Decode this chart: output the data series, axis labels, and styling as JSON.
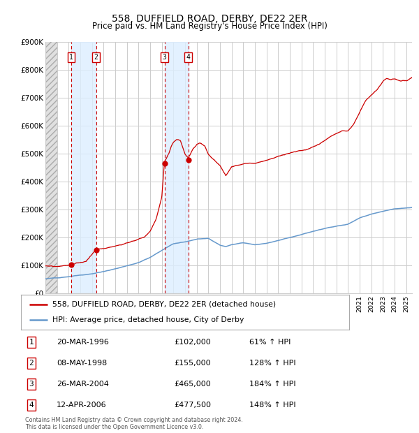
{
  "title": "558, DUFFIELD ROAD, DERBY, DE22 2ER",
  "subtitle": "Price paid vs. HM Land Registry's House Price Index (HPI)",
  "footer_line1": "Contains HM Land Registry data © Crown copyright and database right 2024.",
  "footer_line2": "This data is licensed under the Open Government Licence v3.0.",
  "legend_label_red": "558, DUFFIELD ROAD, DERBY, DE22 2ER (detached house)",
  "legend_label_blue": "HPI: Average price, detached house, City of Derby",
  "table_rows": [
    {
      "num": "1",
      "date": "20-MAR-1996",
      "price": "£102,000",
      "hpi": "61% ↑ HPI"
    },
    {
      "num": "2",
      "date": "08-MAY-1998",
      "price": "£155,000",
      "hpi": "128% ↑ HPI"
    },
    {
      "num": "3",
      "date": "26-MAR-2004",
      "price": "£465,000",
      "hpi": "184% ↑ HPI"
    },
    {
      "num": "4",
      "date": "12-APR-2006",
      "price": "£477,500",
      "hpi": "148% ↑ HPI"
    }
  ],
  "sale_dates_decimal": [
    1996.22,
    1998.35,
    2004.23,
    2006.28
  ],
  "sale_prices": [
    102000,
    155000,
    465000,
    477500
  ],
  "red_color": "#cc0000",
  "blue_color": "#6699cc",
  "shade_color": "#ddeeff",
  "grid_color": "#cccccc",
  "ylim": [
    0,
    900000
  ],
  "xlim_start": 1994.0,
  "xlim_end": 2025.5,
  "background_color": "#ffffff",
  "hpi_anchors_x": [
    1994.0,
    1995.0,
    1996.0,
    1997.0,
    1998.0,
    1999.0,
    2000.0,
    2001.0,
    2002.0,
    2003.0,
    2004.0,
    2005.0,
    2006.0,
    2007.0,
    2008.0,
    2009.0,
    2009.5,
    2010.0,
    2011.0,
    2012.0,
    2013.0,
    2014.0,
    2015.0,
    2016.0,
    2017.0,
    2018.0,
    2019.0,
    2020.0,
    2021.0,
    2022.0,
    2023.0,
    2024.0,
    2025.0,
    2025.5
  ],
  "hpi_anchors_v": [
    52000,
    55000,
    60000,
    65000,
    70000,
    78000,
    88000,
    100000,
    112000,
    130000,
    155000,
    178000,
    185000,
    195000,
    198000,
    173000,
    168000,
    175000,
    182000,
    175000,
    180000,
    190000,
    200000,
    210000,
    222000,
    232000,
    240000,
    248000,
    270000,
    285000,
    295000,
    303000,
    308000,
    310000
  ],
  "red_anchors_x": [
    1994.0,
    1995.5,
    1996.22,
    1996.5,
    1997.0,
    1997.5,
    1998.35,
    1998.8,
    1999.5,
    2000.5,
    2001.5,
    2002.5,
    2003.0,
    2003.5,
    2004.0,
    2004.23,
    2004.6,
    2004.8,
    2005.0,
    2005.3,
    2005.6,
    2006.0,
    2006.28,
    2006.7,
    2007.0,
    2007.3,
    2007.7,
    2008.0,
    2008.5,
    2009.0,
    2009.5,
    2010.0,
    2010.5,
    2011.0,
    2011.5,
    2012.0,
    2013.0,
    2014.0,
    2015.0,
    2016.0,
    2016.5,
    2017.0,
    2017.5,
    2018.0,
    2018.5,
    2019.0,
    2019.5,
    2020.0,
    2020.5,
    2021.0,
    2021.5,
    2022.0,
    2022.5,
    2023.0,
    2023.3,
    2023.7,
    2024.0,
    2024.5,
    2025.0,
    2025.5
  ],
  "red_anchors_v": [
    98000,
    100000,
    102000,
    103000,
    107000,
    112000,
    155000,
    158000,
    163000,
    172000,
    185000,
    200000,
    220000,
    260000,
    340000,
    465000,
    495000,
    520000,
    535000,
    545000,
    540000,
    490000,
    477500,
    510000,
    525000,
    530000,
    520000,
    490000,
    470000,
    450000,
    415000,
    445000,
    450000,
    455000,
    458000,
    455000,
    465000,
    478000,
    490000,
    500000,
    505000,
    515000,
    525000,
    540000,
    555000,
    565000,
    575000,
    575000,
    600000,
    640000,
    680000,
    700000,
    720000,
    750000,
    760000,
    755000,
    760000,
    755000,
    755000,
    765000
  ]
}
